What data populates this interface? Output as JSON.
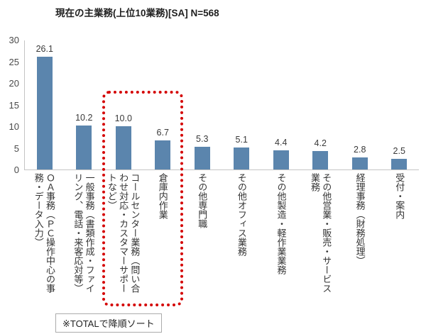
{
  "title": "現在の主業務(上位10業務)[SA] N=568",
  "footnote": "※TOTALで降順ソート",
  "chart_data": {
    "type": "bar",
    "title": "現在の主業務(上位10業務)[SA] N=568",
    "categories": [
      "ＯＡ事務（ＰＣ操作中心の事務・データ入力）",
      "一般事務（書類作成・ファイリング、電話・来客応対等）",
      "コールセンター業務（問い合わせ対応・カスタマーサポートなど）",
      "倉庫内作業",
      "その他専門職",
      "その他オフィス業務",
      "その他製造・軽作業業務",
      "その他営業・販売・サービス業務",
      "経理事務（財務処理）",
      "受付・案内"
    ],
    "values": [
      26.1,
      10.2,
      10.0,
      6.7,
      5.3,
      5.1,
      4.4,
      4.2,
      2.8,
      2.5
    ],
    "value_label_decimals": 1,
    "xlabel": "",
    "ylabel": "",
    "ylim": [
      0,
      30
    ],
    "yticks": [
      0,
      5,
      10,
      15,
      20,
      25,
      30
    ],
    "grid": false,
    "legend_position": "none",
    "bar_color": "#5b85ad",
    "highlight": {
      "type": "dotted-box",
      "color": "#d40000",
      "category_indices": [
        2,
        3
      ],
      "categories": [
        "コールセンター業務（問い合わせ対応・カスタマーサポートなど）",
        "倉庫内作業"
      ]
    }
  }
}
